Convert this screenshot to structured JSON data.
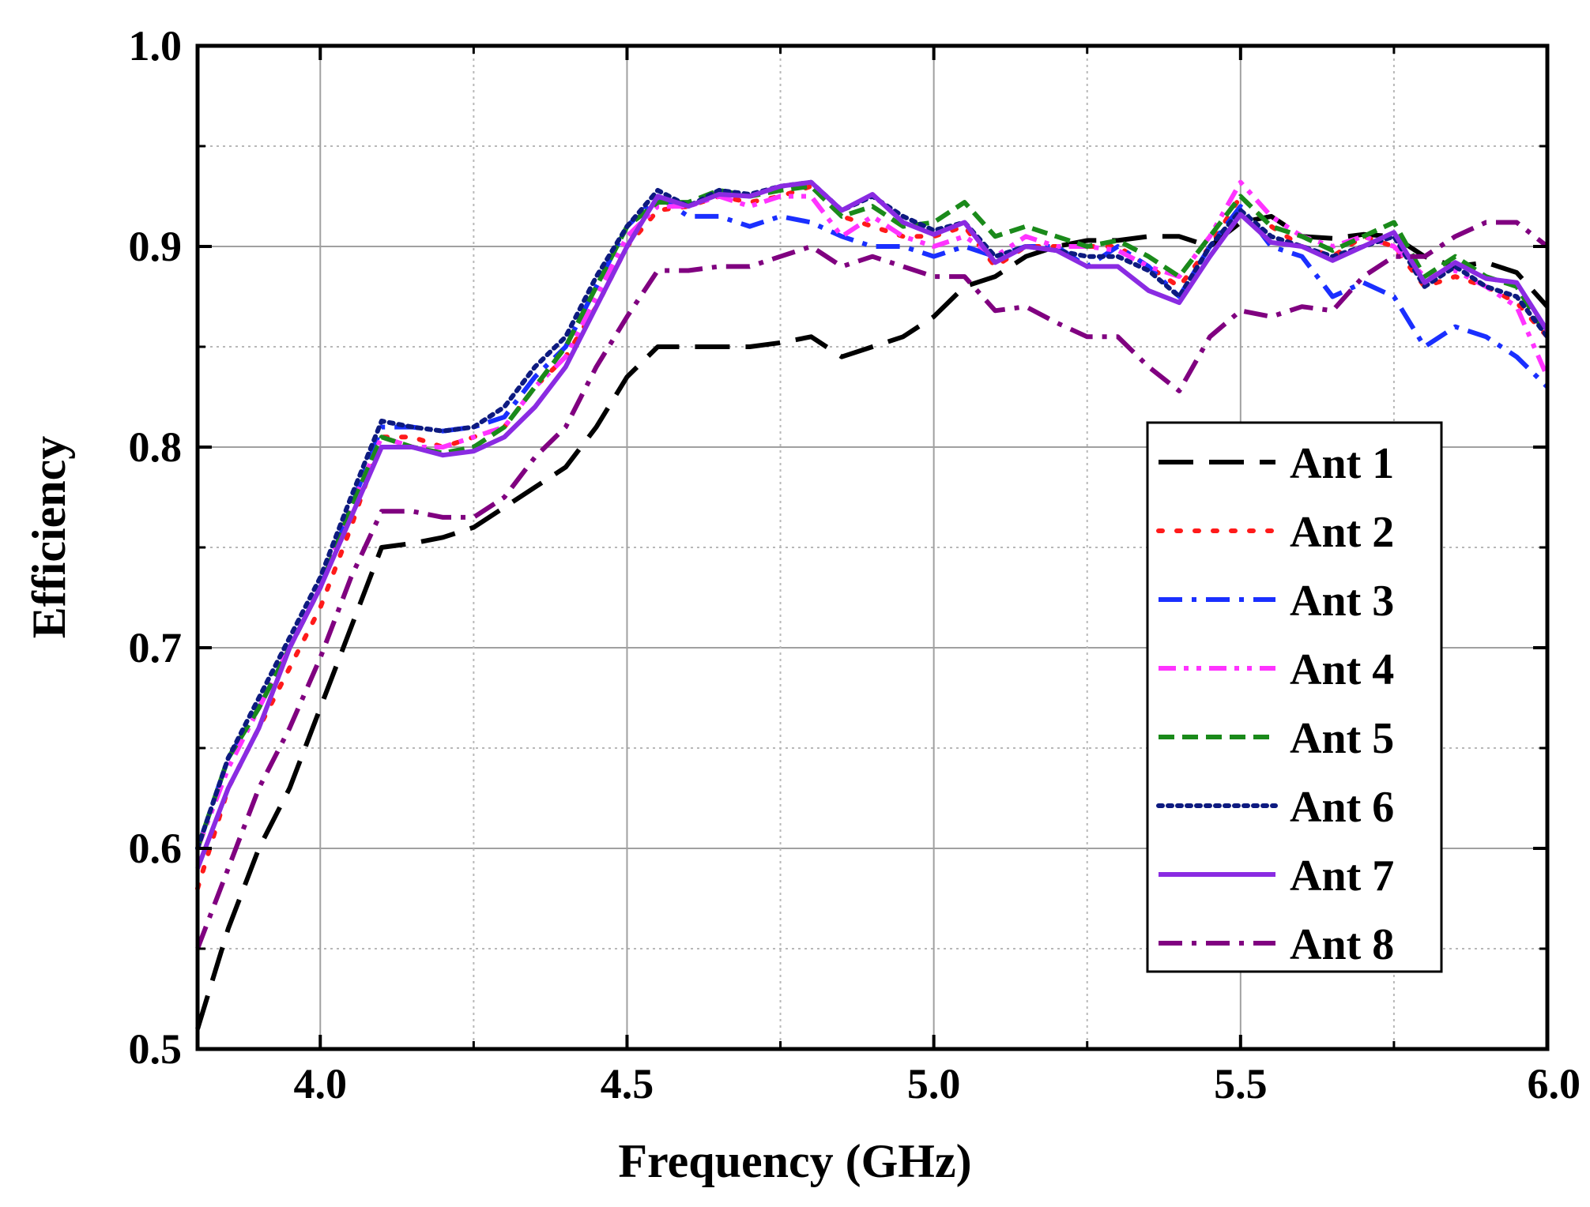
{
  "chart_data": {
    "type": "line",
    "title": "",
    "xlabel": "Frequency (GHz)",
    "ylabel": "Efficiency",
    "xlim": [
      3.8,
      6.0
    ],
    "ylim": [
      0.5,
      1.0
    ],
    "xticks": [
      4.0,
      4.5,
      5.0,
      5.5,
      6.0
    ],
    "xtick_labels": [
      "4.0",
      "4.5",
      "5.0",
      "5.5",
      "6.0"
    ],
    "yticks": [
      0.5,
      0.6,
      0.7,
      0.8,
      0.9,
      1.0
    ],
    "ytick_labels": [
      "0.5",
      "0.6",
      "0.7",
      "0.8",
      "0.9",
      "1.0"
    ],
    "grid": true,
    "legend_position": "center-right",
    "x": [
      3.8,
      3.85,
      3.9,
      3.95,
      4.0,
      4.05,
      4.1,
      4.15,
      4.2,
      4.25,
      4.3,
      4.35,
      4.4,
      4.45,
      4.5,
      4.55,
      4.6,
      4.65,
      4.7,
      4.75,
      4.8,
      4.85,
      4.9,
      4.95,
      5.0,
      5.05,
      5.1,
      5.15,
      5.2,
      5.25,
      5.3,
      5.35,
      5.4,
      5.45,
      5.5,
      5.55,
      5.6,
      5.65,
      5.7,
      5.75,
      5.8,
      5.85,
      5.9,
      5.95,
      6.0
    ],
    "series": [
      {
        "name": "Ant 1",
        "color": "#000000",
        "dash": "long-dash",
        "values": [
          0.51,
          0.56,
          0.6,
          0.63,
          0.67,
          0.71,
          0.75,
          0.752,
          0.755,
          0.76,
          0.77,
          0.78,
          0.79,
          0.81,
          0.835,
          0.85,
          0.85,
          0.85,
          0.85,
          0.852,
          0.855,
          0.845,
          0.85,
          0.855,
          0.865,
          0.88,
          0.885,
          0.895,
          0.9,
          0.903,
          0.903,
          0.905,
          0.905,
          0.9,
          0.912,
          0.915,
          0.905,
          0.904,
          0.906,
          0.905,
          0.895,
          0.89,
          0.892,
          0.887,
          0.87
        ]
      },
      {
        "name": "Ant 2",
        "color": "#ff1a1a",
        "dash": "dot",
        "values": [
          0.58,
          0.63,
          0.66,
          0.69,
          0.72,
          0.76,
          0.805,
          0.805,
          0.8,
          0.805,
          0.81,
          0.83,
          0.845,
          0.87,
          0.9,
          0.918,
          0.92,
          0.925,
          0.922,
          0.925,
          0.93,
          0.915,
          0.91,
          0.905,
          0.905,
          0.91,
          0.89,
          0.9,
          0.9,
          0.9,
          0.9,
          0.89,
          0.88,
          0.9,
          0.925,
          0.91,
          0.9,
          0.895,
          0.905,
          0.9,
          0.88,
          0.885,
          0.88,
          0.872,
          0.855
        ]
      },
      {
        "name": "Ant 3",
        "color": "#1a2fff",
        "dash": "dash-dot",
        "values": [
          0.6,
          0.645,
          0.67,
          0.7,
          0.73,
          0.77,
          0.81,
          0.81,
          0.808,
          0.81,
          0.815,
          0.835,
          0.85,
          0.88,
          0.91,
          0.925,
          0.915,
          0.915,
          0.91,
          0.915,
          0.912,
          0.905,
          0.9,
          0.9,
          0.895,
          0.9,
          0.895,
          0.9,
          0.9,
          0.89,
          0.9,
          0.89,
          0.875,
          0.9,
          0.92,
          0.9,
          0.895,
          0.875,
          0.882,
          0.875,
          0.85,
          0.86,
          0.855,
          0.845,
          0.83
        ]
      },
      {
        "name": "Ant 4",
        "color": "#ff33ff",
        "dash": "dash-dot-dot",
        "values": [
          0.6,
          0.64,
          0.67,
          0.7,
          0.73,
          0.77,
          0.805,
          0.8,
          0.8,
          0.805,
          0.81,
          0.83,
          0.845,
          0.875,
          0.905,
          0.92,
          0.92,
          0.925,
          0.92,
          0.925,
          0.925,
          0.905,
          0.915,
          0.905,
          0.9,
          0.905,
          0.895,
          0.905,
          0.9,
          0.9,
          0.898,
          0.89,
          0.885,
          0.905,
          0.932,
          0.915,
          0.905,
          0.9,
          0.905,
          0.9,
          0.885,
          0.888,
          0.88,
          0.87,
          0.835
        ]
      },
      {
        "name": "Ant 5",
        "color": "#1a8a1a",
        "dash": "short-dash",
        "values": [
          0.6,
          0.645,
          0.67,
          0.7,
          0.73,
          0.77,
          0.805,
          0.8,
          0.797,
          0.8,
          0.81,
          0.83,
          0.85,
          0.88,
          0.91,
          0.922,
          0.922,
          0.928,
          0.925,
          0.928,
          0.93,
          0.915,
          0.92,
          0.91,
          0.912,
          0.922,
          0.905,
          0.91,
          0.905,
          0.9,
          0.903,
          0.895,
          0.885,
          0.905,
          0.925,
          0.91,
          0.905,
          0.898,
          0.905,
          0.912,
          0.885,
          0.895,
          0.885,
          0.88,
          0.855
        ]
      },
      {
        "name": "Ant 6",
        "color": "#0d1a80",
        "dash": "dense-dot",
        "values": [
          0.6,
          0.645,
          0.675,
          0.705,
          0.735,
          0.775,
          0.813,
          0.81,
          0.808,
          0.81,
          0.82,
          0.84,
          0.855,
          0.885,
          0.91,
          0.928,
          0.92,
          0.928,
          0.926,
          0.93,
          0.932,
          0.918,
          0.925,
          0.915,
          0.908,
          0.912,
          0.895,
          0.9,
          0.898,
          0.895,
          0.895,
          0.888,
          0.875,
          0.9,
          0.918,
          0.905,
          0.9,
          0.895,
          0.9,
          0.905,
          0.88,
          0.89,
          0.88,
          0.875,
          0.855
        ]
      },
      {
        "name": "Ant 7",
        "color": "#8a2be2",
        "dash": "solid",
        "values": [
          0.59,
          0.63,
          0.66,
          0.7,
          0.73,
          0.765,
          0.8,
          0.8,
          0.796,
          0.798,
          0.805,
          0.82,
          0.84,
          0.87,
          0.9,
          0.925,
          0.92,
          0.926,
          0.925,
          0.93,
          0.932,
          0.918,
          0.926,
          0.912,
          0.906,
          0.912,
          0.892,
          0.9,
          0.898,
          0.89,
          0.89,
          0.878,
          0.872,
          0.895,
          0.916,
          0.902,
          0.9,
          0.893,
          0.9,
          0.907,
          0.882,
          0.892,
          0.884,
          0.882,
          0.858
        ]
      },
      {
        "name": "Ant 8",
        "color": "#800080",
        "dash": "dash-dot",
        "values": [
          0.55,
          0.59,
          0.63,
          0.66,
          0.695,
          0.735,
          0.768,
          0.768,
          0.765,
          0.765,
          0.775,
          0.795,
          0.81,
          0.84,
          0.865,
          0.888,
          0.888,
          0.89,
          0.89,
          0.895,
          0.9,
          0.89,
          0.895,
          0.89,
          0.885,
          0.885,
          0.868,
          0.87,
          0.862,
          0.855,
          0.855,
          0.84,
          0.828,
          0.855,
          0.868,
          0.865,
          0.87,
          0.868,
          0.885,
          0.895,
          0.895,
          0.905,
          0.912,
          0.912,
          0.9
        ]
      }
    ]
  }
}
